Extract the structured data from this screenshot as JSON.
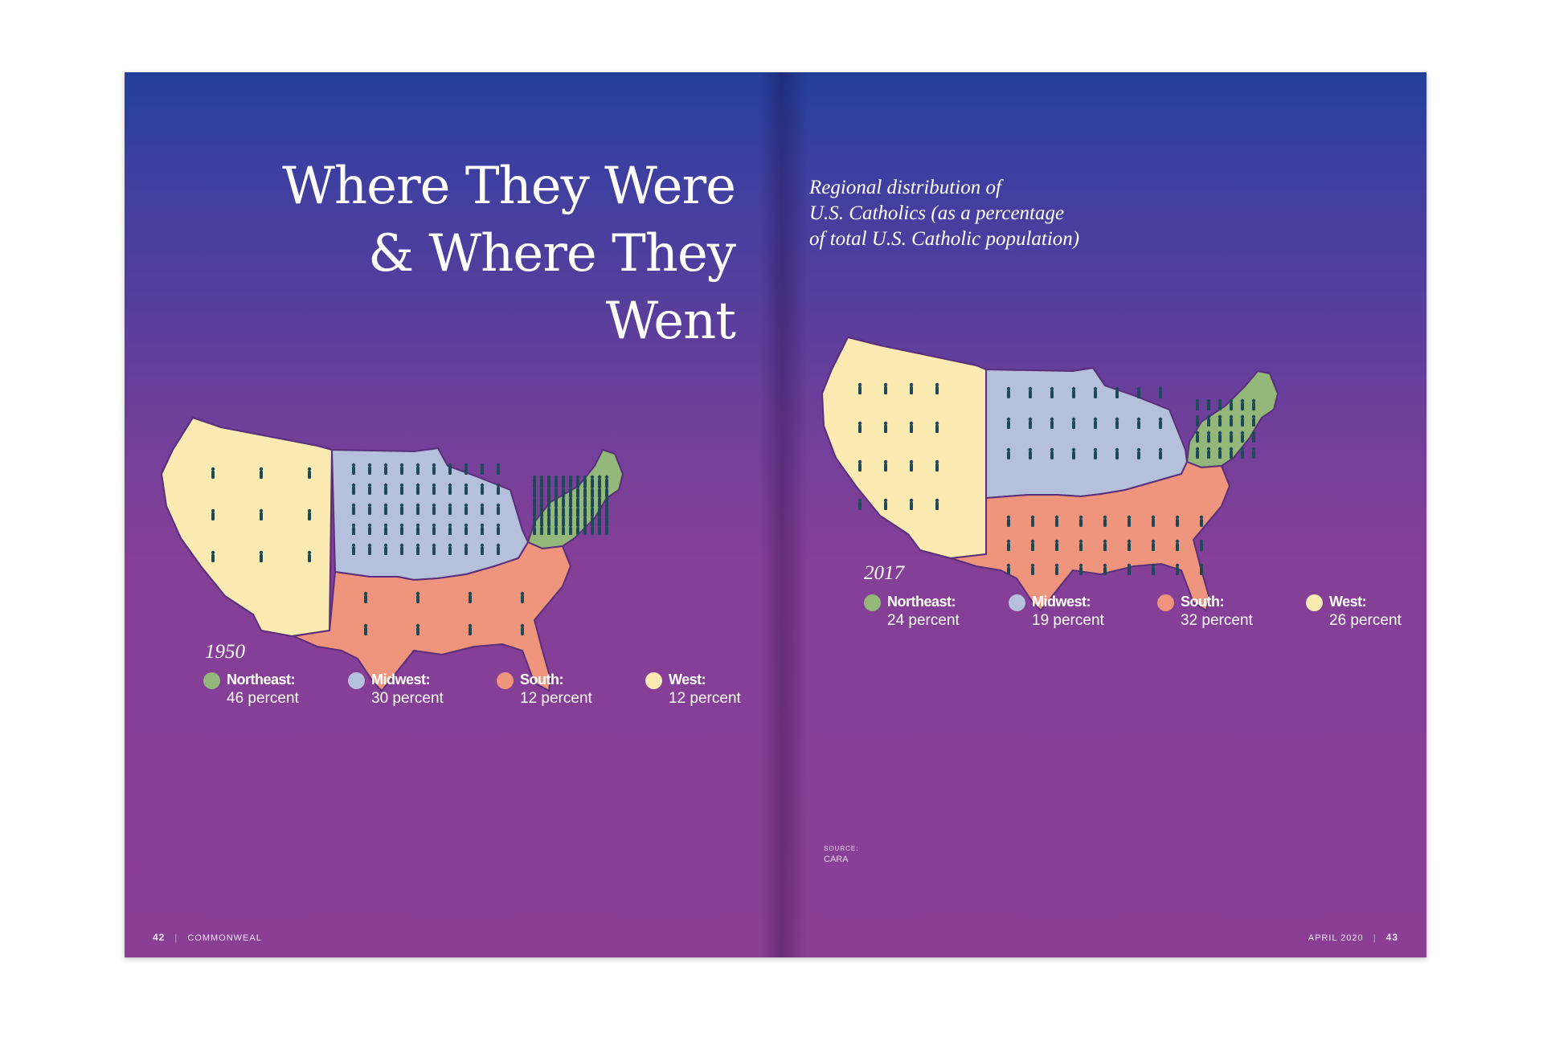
{
  "title_lines": [
    "Where They Were",
    "& Where They",
    "Went"
  ],
  "subtitle_lines": [
    "Regional distribution of",
    "U.S. Catholics (as a percentage",
    "of total U.S. Catholic population)"
  ],
  "colors": {
    "northeast": "#93b87a",
    "midwest": "#b5c0dc",
    "south": "#ef947d",
    "west": "#fbeab1",
    "figure": "#1e4a57",
    "background_top": "#22409b",
    "background_bottom": "#8a3f95"
  },
  "maps": [
    {
      "year": "1950",
      "regions": [
        {
          "key": "northeast",
          "name": "Northeast:",
          "value": "46 percent"
        },
        {
          "key": "midwest",
          "name": "Midwest:",
          "value": "30 percent"
        },
        {
          "key": "south",
          "name": "South:",
          "value": "12 percent"
        },
        {
          "key": "west",
          "name": "West:",
          "value": "12 percent"
        }
      ]
    },
    {
      "year": "2017",
      "regions": [
        {
          "key": "northeast",
          "name": "Northeast:",
          "value": "24 percent"
        },
        {
          "key": "midwest",
          "name": "Midwest:",
          "value": "19 percent"
        },
        {
          "key": "south",
          "name": "South:",
          "value": "32 percent"
        },
        {
          "key": "west",
          "name": "West:",
          "value": "26 percent"
        }
      ]
    }
  ],
  "source": {
    "label": "SOURCE:",
    "value": "CARA"
  },
  "folio_left": {
    "page": "42",
    "publication": "COMMONWEAL"
  },
  "folio_right": {
    "date": "APRIL 2020",
    "page": "43"
  }
}
